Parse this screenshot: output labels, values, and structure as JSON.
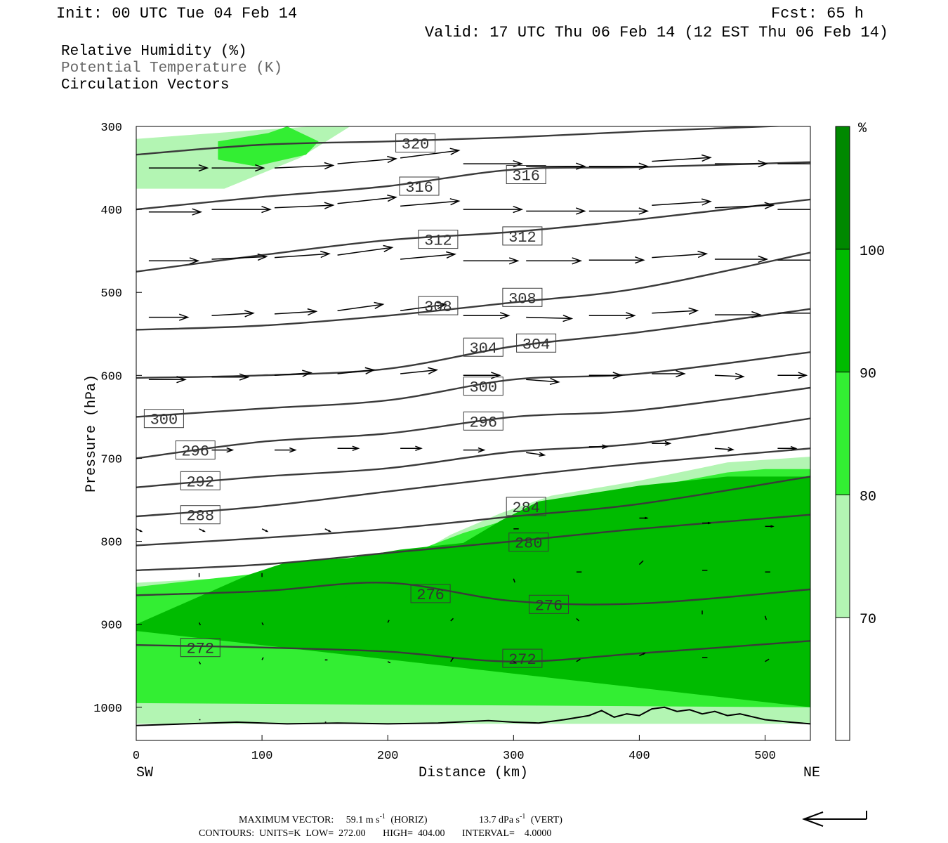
{
  "header": {
    "init": "Init: 00 UTC Tue 04 Feb 14",
    "fcst": "Fcst:   65 h",
    "valid": "Valid: 17 UTC Thu 06 Feb 14 (12 EST Thu 06 Feb 14)"
  },
  "fields": {
    "rh": "Relative Humidity (%)",
    "theta": "Potential Temperature (K)",
    "vectors": "Circulation Vectors"
  },
  "footer": {
    "max_vector_label": "MAXIMUM VECTOR:",
    "horiz_value": "59.1 m s",
    "horiz_exp": "-1",
    "horiz_tag": "(HORIZ)",
    "vert_value": "13.7 dPa s",
    "vert_exp": "-1",
    "vert_tag": "(VERT)",
    "contours": "CONTOURS:  UNITS=K  LOW=  272.00       HIGH=  404.00       INTERVAL=    4.0000"
  },
  "chart_data": {
    "type": "contour",
    "xlabel": "Distance (km)",
    "ylabel": "Pressure (hPa)",
    "xlim": [
      0,
      536
    ],
    "ylim": [
      1040,
      300
    ],
    "x_ticks": [
      0,
      100,
      200,
      300,
      400,
      500
    ],
    "y_ticks": [
      300,
      400,
      500,
      600,
      700,
      800,
      900,
      1000
    ],
    "x_end_labels": {
      "left": "SW",
      "right": "NE"
    },
    "colorbar": {
      "unit": "%",
      "levels": [
        70,
        80,
        90,
        100
      ],
      "colors": [
        "#ffffff",
        "#b3f5b3",
        "#33ee33",
        "#00bb00",
        "#008800"
      ]
    },
    "isentropes": [
      {
        "theta": 320,
        "x": [
          0,
          100,
          200,
          300,
          400,
          536
        ],
        "p": [
          334,
          322,
          318,
          313,
          306,
          298
        ]
      },
      {
        "theta": 316,
        "x": [
          0,
          100,
          200,
          300,
          400,
          536
        ],
        "p": [
          400,
          385,
          372,
          352,
          349,
          343
        ]
      },
      {
        "theta": 312,
        "x": [
          0,
          100,
          200,
          300,
          400,
          536
        ],
        "p": [
          475,
          455,
          437,
          427,
          412,
          388
        ]
      },
      {
        "theta": 308,
        "x": [
          0,
          100,
          200,
          300,
          400,
          536
        ],
        "p": [
          545,
          540,
          528,
          512,
          495,
          452
        ]
      },
      {
        "theta": 304,
        "x": [
          0,
          100,
          200,
          300,
          400,
          536
        ],
        "p": [
          603,
          600,
          592,
          565,
          548,
          520
        ]
      },
      {
        "theta": 300,
        "x": [
          0,
          100,
          200,
          300,
          400,
          536
        ],
        "p": [
          650,
          640,
          630,
          605,
          598,
          572
        ]
      },
      {
        "theta": 296,
        "x": [
          0,
          100,
          200,
          300,
          400,
          536
        ],
        "p": [
          700,
          680,
          670,
          650,
          642,
          615
        ]
      },
      {
        "theta": 292,
        "x": [
          0,
          100,
          200,
          300,
          400,
          536
        ],
        "p": [
          735,
          722,
          712,
          692,
          682,
          652
        ]
      },
      {
        "theta": 288,
        "x": [
          0,
          100,
          200,
          300,
          400,
          536
        ],
        "p": [
          770,
          758,
          740,
          722,
          706,
          688
        ]
      },
      {
        "theta": 284,
        "x": [
          0,
          100,
          200,
          300,
          400,
          536
        ],
        "p": [
          805,
          796,
          785,
          770,
          755,
          722
        ]
      },
      {
        "theta": 280,
        "x": [
          0,
          100,
          200,
          300,
          400,
          536
        ],
        "p": [
          835,
          828,
          814,
          800,
          785,
          768
        ]
      },
      {
        "theta": 276,
        "x": [
          0,
          100,
          200,
          300,
          400,
          536
        ],
        "p": [
          865,
          860,
          850,
          872,
          875,
          858
        ]
      },
      {
        "theta": 272,
        "x": [
          0,
          100,
          200,
          300,
          400,
          536
        ],
        "p": [
          925,
          928,
          933,
          945,
          935,
          920
        ]
      }
    ],
    "isentrope_labels": [
      {
        "text": "320",
        "x": 222,
        "p": 320
      },
      {
        "text": "316",
        "x": 225,
        "p": 372
      },
      {
        "text": "316",
        "x": 310,
        "p": 358
      },
      {
        "text": "312",
        "x": 240,
        "p": 436
      },
      {
        "text": "312",
        "x": 307,
        "p": 432
      },
      {
        "text": "308",
        "x": 240,
        "p": 516
      },
      {
        "text": "308",
        "x": 307,
        "p": 506
      },
      {
        "text": "304",
        "x": 276,
        "p": 566
      },
      {
        "text": "304",
        "x": 318,
        "p": 561
      },
      {
        "text": "300",
        "x": 276,
        "p": 613
      },
      {
        "text": "300",
        "x": 22,
        "p": 652
      },
      {
        "text": "296",
        "x": 276,
        "p": 655
      },
      {
        "text": "296",
        "x": 47,
        "p": 690
      },
      {
        "text": "292",
        "x": 51,
        "p": 727
      },
      {
        "text": "288",
        "x": 51,
        "p": 768
      },
      {
        "text": "284",
        "x": 310,
        "p": 758
      },
      {
        "text": "280",
        "x": 312,
        "p": 801
      },
      {
        "text": "276",
        "x": 234,
        "p": 863
      },
      {
        "text": "276",
        "x": 328,
        "p": 876
      },
      {
        "text": "272",
        "x": 51,
        "p": 928
      },
      {
        "text": "272",
        "x": 307,
        "p": 941
      }
    ],
    "rh_regions": [
      {
        "level": "70-80",
        "x": [
          0,
          90,
          140,
          170,
          130,
          70,
          0
        ],
        "p": [
          315,
          305,
          300,
          300,
          338,
          375,
          375
        ]
      },
      {
        "level": "80-90",
        "x": [
          65,
          105,
          120,
          145,
          135,
          95,
          65
        ],
        "p": [
          318,
          308,
          300,
          318,
          334,
          348,
          340
        ]
      },
      {
        "level": "70-80",
        "x": [
          0,
          60,
          130,
          220,
          250,
          290,
          330,
          400,
          470,
          536,
          536,
          0
        ],
        "p": [
          850,
          845,
          835,
          818,
          792,
          766,
          745,
          727,
          705,
          698,
          1020,
          1020
        ]
      },
      {
        "level": "80-90",
        "x": [
          0,
          536,
          536,
          500,
          470,
          400,
          330,
          260,
          220,
          120,
          0
        ],
        "p": [
          995,
          1000,
          713,
          713,
          717,
          737,
          758,
          790,
          813,
          835,
          855
        ]
      },
      {
        "level": "90-100",
        "x": [
          0,
          536,
          536,
          470,
          400,
          320,
          290,
          260,
          210,
          170,
          120,
          90,
          0
        ],
        "p": [
          908,
          1000,
          722,
          722,
          733,
          752,
          775,
          802,
          810,
          820,
          825,
          840,
          900
        ]
      },
      {
        "level": "90-100",
        "x": [
          85,
          110,
          140,
          160,
          175,
          160,
          130,
          100,
          85
        ],
        "p": [
          858,
          840,
          836,
          842,
          858,
          875,
          882,
          875,
          868
        ]
      }
    ],
    "vectors": [
      {
        "x": 10,
        "p": 350,
        "u": 45,
        "w": 0
      },
      {
        "x": 60,
        "p": 350,
        "u": 40,
        "w": 0
      },
      {
        "x": 110,
        "p": 350,
        "u": 45,
        "w": 2
      },
      {
        "x": 160,
        "p": 345,
        "u": 45,
        "w": 4
      },
      {
        "x": 210,
        "p": 338,
        "u": 45,
        "w": 6
      },
      {
        "x": 260,
        "p": 345,
        "u": 45,
        "w": 0
      },
      {
        "x": 310,
        "p": 348,
        "u": 45,
        "w": 0
      },
      {
        "x": 360,
        "p": 348,
        "u": 45,
        "w": 0
      },
      {
        "x": 410,
        "p": 342,
        "u": 45,
        "w": 3
      },
      {
        "x": 460,
        "p": 345,
        "u": 40,
        "w": 0
      },
      {
        "x": 510,
        "p": 345,
        "u": 40,
        "w": 0
      },
      {
        "x": 10,
        "p": 403,
        "u": 40,
        "w": 0
      },
      {
        "x": 60,
        "p": 400,
        "u": 45,
        "w": 0
      },
      {
        "x": 110,
        "p": 398,
        "u": 45,
        "w": 2
      },
      {
        "x": 160,
        "p": 393,
        "u": 45,
        "w": 5
      },
      {
        "x": 210,
        "p": 396,
        "u": 45,
        "w": 4
      },
      {
        "x": 260,
        "p": 400,
        "u": 45,
        "w": 0
      },
      {
        "x": 310,
        "p": 402,
        "u": 45,
        "w": 0
      },
      {
        "x": 360,
        "p": 402,
        "u": 45,
        "w": 0
      },
      {
        "x": 410,
        "p": 395,
        "u": 45,
        "w": 3
      },
      {
        "x": 460,
        "p": 398,
        "u": 45,
        "w": 2
      },
      {
        "x": 510,
        "p": 400,
        "u": 40,
        "w": 0
      },
      {
        "x": 10,
        "p": 462,
        "u": 38,
        "w": 0
      },
      {
        "x": 60,
        "p": 460,
        "u": 42,
        "w": 2
      },
      {
        "x": 110,
        "p": 458,
        "u": 42,
        "w": 3
      },
      {
        "x": 160,
        "p": 455,
        "u": 42,
        "w": 6
      },
      {
        "x": 210,
        "p": 460,
        "u": 42,
        "w": 4
      },
      {
        "x": 260,
        "p": 462,
        "u": 42,
        "w": 0
      },
      {
        "x": 310,
        "p": 462,
        "u": 42,
        "w": 0
      },
      {
        "x": 360,
        "p": 461,
        "u": 42,
        "w": 0
      },
      {
        "x": 410,
        "p": 458,
        "u": 42,
        "w": 3
      },
      {
        "x": 460,
        "p": 460,
        "u": 40,
        "w": 0
      },
      {
        "x": 510,
        "p": 461,
        "u": 40,
        "w": 0
      },
      {
        "x": 10,
        "p": 530,
        "u": 30,
        "w": 0
      },
      {
        "x": 60,
        "p": 528,
        "u": 32,
        "w": 2
      },
      {
        "x": 110,
        "p": 526,
        "u": 32,
        "w": 2
      },
      {
        "x": 160,
        "p": 522,
        "u": 35,
        "w": 5
      },
      {
        "x": 210,
        "p": 522,
        "u": 35,
        "w": 5
      },
      {
        "x": 260,
        "p": 528,
        "u": 35,
        "w": 0
      },
      {
        "x": 310,
        "p": 530,
        "u": 35,
        "w": -1
      },
      {
        "x": 360,
        "p": 528,
        "u": 35,
        "w": 0
      },
      {
        "x": 410,
        "p": 525,
        "u": 35,
        "w": 2
      },
      {
        "x": 460,
        "p": 527,
        "u": 35,
        "w": 0
      },
      {
        "x": 510,
        "p": 525,
        "u": 35,
        "w": 0
      },
      {
        "x": 10,
        "p": 605,
        "u": 28,
        "w": 0
      },
      {
        "x": 60,
        "p": 602,
        "u": 28,
        "w": 0
      },
      {
        "x": 110,
        "p": 600,
        "u": 28,
        "w": 2
      },
      {
        "x": 160,
        "p": 598,
        "u": 28,
        "w": 3
      },
      {
        "x": 210,
        "p": 598,
        "u": 28,
        "w": 3
      },
      {
        "x": 260,
        "p": 600,
        "u": 28,
        "w": 0
      },
      {
        "x": 310,
        "p": 605,
        "u": 25,
        "w": -2
      },
      {
        "x": 360,
        "p": 600,
        "u": 25,
        "w": 0
      },
      {
        "x": 410,
        "p": 598,
        "u": 25,
        "w": 0
      },
      {
        "x": 460,
        "p": 600,
        "u": 22,
        "w": -1
      },
      {
        "x": 510,
        "p": 600,
        "u": 22,
        "w": 0
      },
      {
        "x": 60,
        "p": 690,
        "u": 16,
        "w": 0
      },
      {
        "x": 110,
        "p": 690,
        "u": 16,
        "w": 0
      },
      {
        "x": 160,
        "p": 688,
        "u": 16,
        "w": 0
      },
      {
        "x": 210,
        "p": 688,
        "u": 16,
        "w": 0
      },
      {
        "x": 260,
        "p": 690,
        "u": 16,
        "w": 0
      },
      {
        "x": 310,
        "p": 693,
        "u": 14,
        "w": -2
      },
      {
        "x": 360,
        "p": 686,
        "u": 14,
        "w": 0
      },
      {
        "x": 410,
        "p": 682,
        "u": 14,
        "w": 0
      },
      {
        "x": 460,
        "p": 688,
        "u": 14,
        "w": -1
      },
      {
        "x": 510,
        "p": 688,
        "u": 14,
        "w": 0
      },
      {
        "x": 0,
        "p": 785,
        "u": 4,
        "w": -2
      },
      {
        "x": 50,
        "p": 785,
        "u": 4,
        "w": -2
      },
      {
        "x": 100,
        "p": 785,
        "u": 4,
        "w": -2
      },
      {
        "x": 150,
        "p": 785,
        "u": 4,
        "w": -2
      },
      {
        "x": 300,
        "p": 785,
        "u": 4,
        "w": 0
      },
      {
        "x": 400,
        "p": 772,
        "u": 6,
        "w": 0
      },
      {
        "x": 450,
        "p": 778,
        "u": 6,
        "w": 0
      },
      {
        "x": 500,
        "p": 782,
        "u": 6,
        "w": 0
      },
      {
        "x": 50,
        "p": 843,
        "u": 0,
        "w": 3
      },
      {
        "x": 100,
        "p": 843,
        "u": 0,
        "w": 3
      },
      {
        "x": 300,
        "p": 845,
        "u": 1,
        "w": -3
      },
      {
        "x": 350,
        "p": 837,
        "u": 4,
        "w": 0
      },
      {
        "x": 400,
        "p": 828,
        "u": 3,
        "w": 3
      },
      {
        "x": 450,
        "p": 835,
        "u": 4,
        "w": 0
      },
      {
        "x": 500,
        "p": 837,
        "u": 4,
        "w": 0
      },
      {
        "x": 50,
        "p": 898,
        "u": 1,
        "w": -2
      },
      {
        "x": 100,
        "p": 898,
        "u": 1,
        "w": -2
      },
      {
        "x": 200,
        "p": 898,
        "u": 1,
        "w": 2
      },
      {
        "x": 250,
        "p": 896,
        "u": 2,
        "w": 2
      },
      {
        "x": 350,
        "p": 893,
        "u": 2,
        "w": -2
      },
      {
        "x": 450,
        "p": 888,
        "u": 0,
        "w": 3
      },
      {
        "x": 500,
        "p": 890,
        "u": 1,
        "w": -3
      },
      {
        "x": 50,
        "p": 945,
        "u": 1,
        "w": -2
      },
      {
        "x": 100,
        "p": 943,
        "u": 1,
        "w": 2
      },
      {
        "x": 150,
        "p": 943,
        "u": 2,
        "w": 0
      },
      {
        "x": 200,
        "p": 945,
        "u": 2,
        "w": -1
      },
      {
        "x": 250,
        "p": 945,
        "u": 2,
        "w": 3
      },
      {
        "x": 300,
        "p": 945,
        "u": 2,
        "w": -1
      },
      {
        "x": 350,
        "p": 945,
        "u": 3,
        "w": 2
      },
      {
        "x": 400,
        "p": 938,
        "u": 4,
        "w": 2
      },
      {
        "x": 450,
        "p": 940,
        "u": 4,
        "w": 0
      },
      {
        "x": 500,
        "p": 945,
        "u": 3,
        "w": 2
      },
      {
        "x": 50,
        "p": 1015,
        "u": 1,
        "w": 0
      },
      {
        "x": 150,
        "p": 1018,
        "u": 1,
        "w": 0
      },
      {
        "x": 300,
        "p": 1018,
        "u": 1,
        "w": 0
      }
    ],
    "terrain": {
      "x": [
        0,
        40,
        80,
        120,
        160,
        200,
        240,
        280,
        300,
        320,
        340,
        360,
        370,
        380,
        390,
        400,
        410,
        420,
        430,
        440,
        450,
        460,
        470,
        480,
        500,
        520,
        536
      ],
      "p": [
        1022,
        1020,
        1018,
        1020,
        1019,
        1020,
        1019,
        1016,
        1018,
        1019,
        1015,
        1010,
        1004,
        1012,
        1008,
        1010,
        1002,
        1000,
        1005,
        1003,
        1008,
        1005,
        1010,
        1008,
        1015,
        1018,
        1020
      ]
    }
  }
}
